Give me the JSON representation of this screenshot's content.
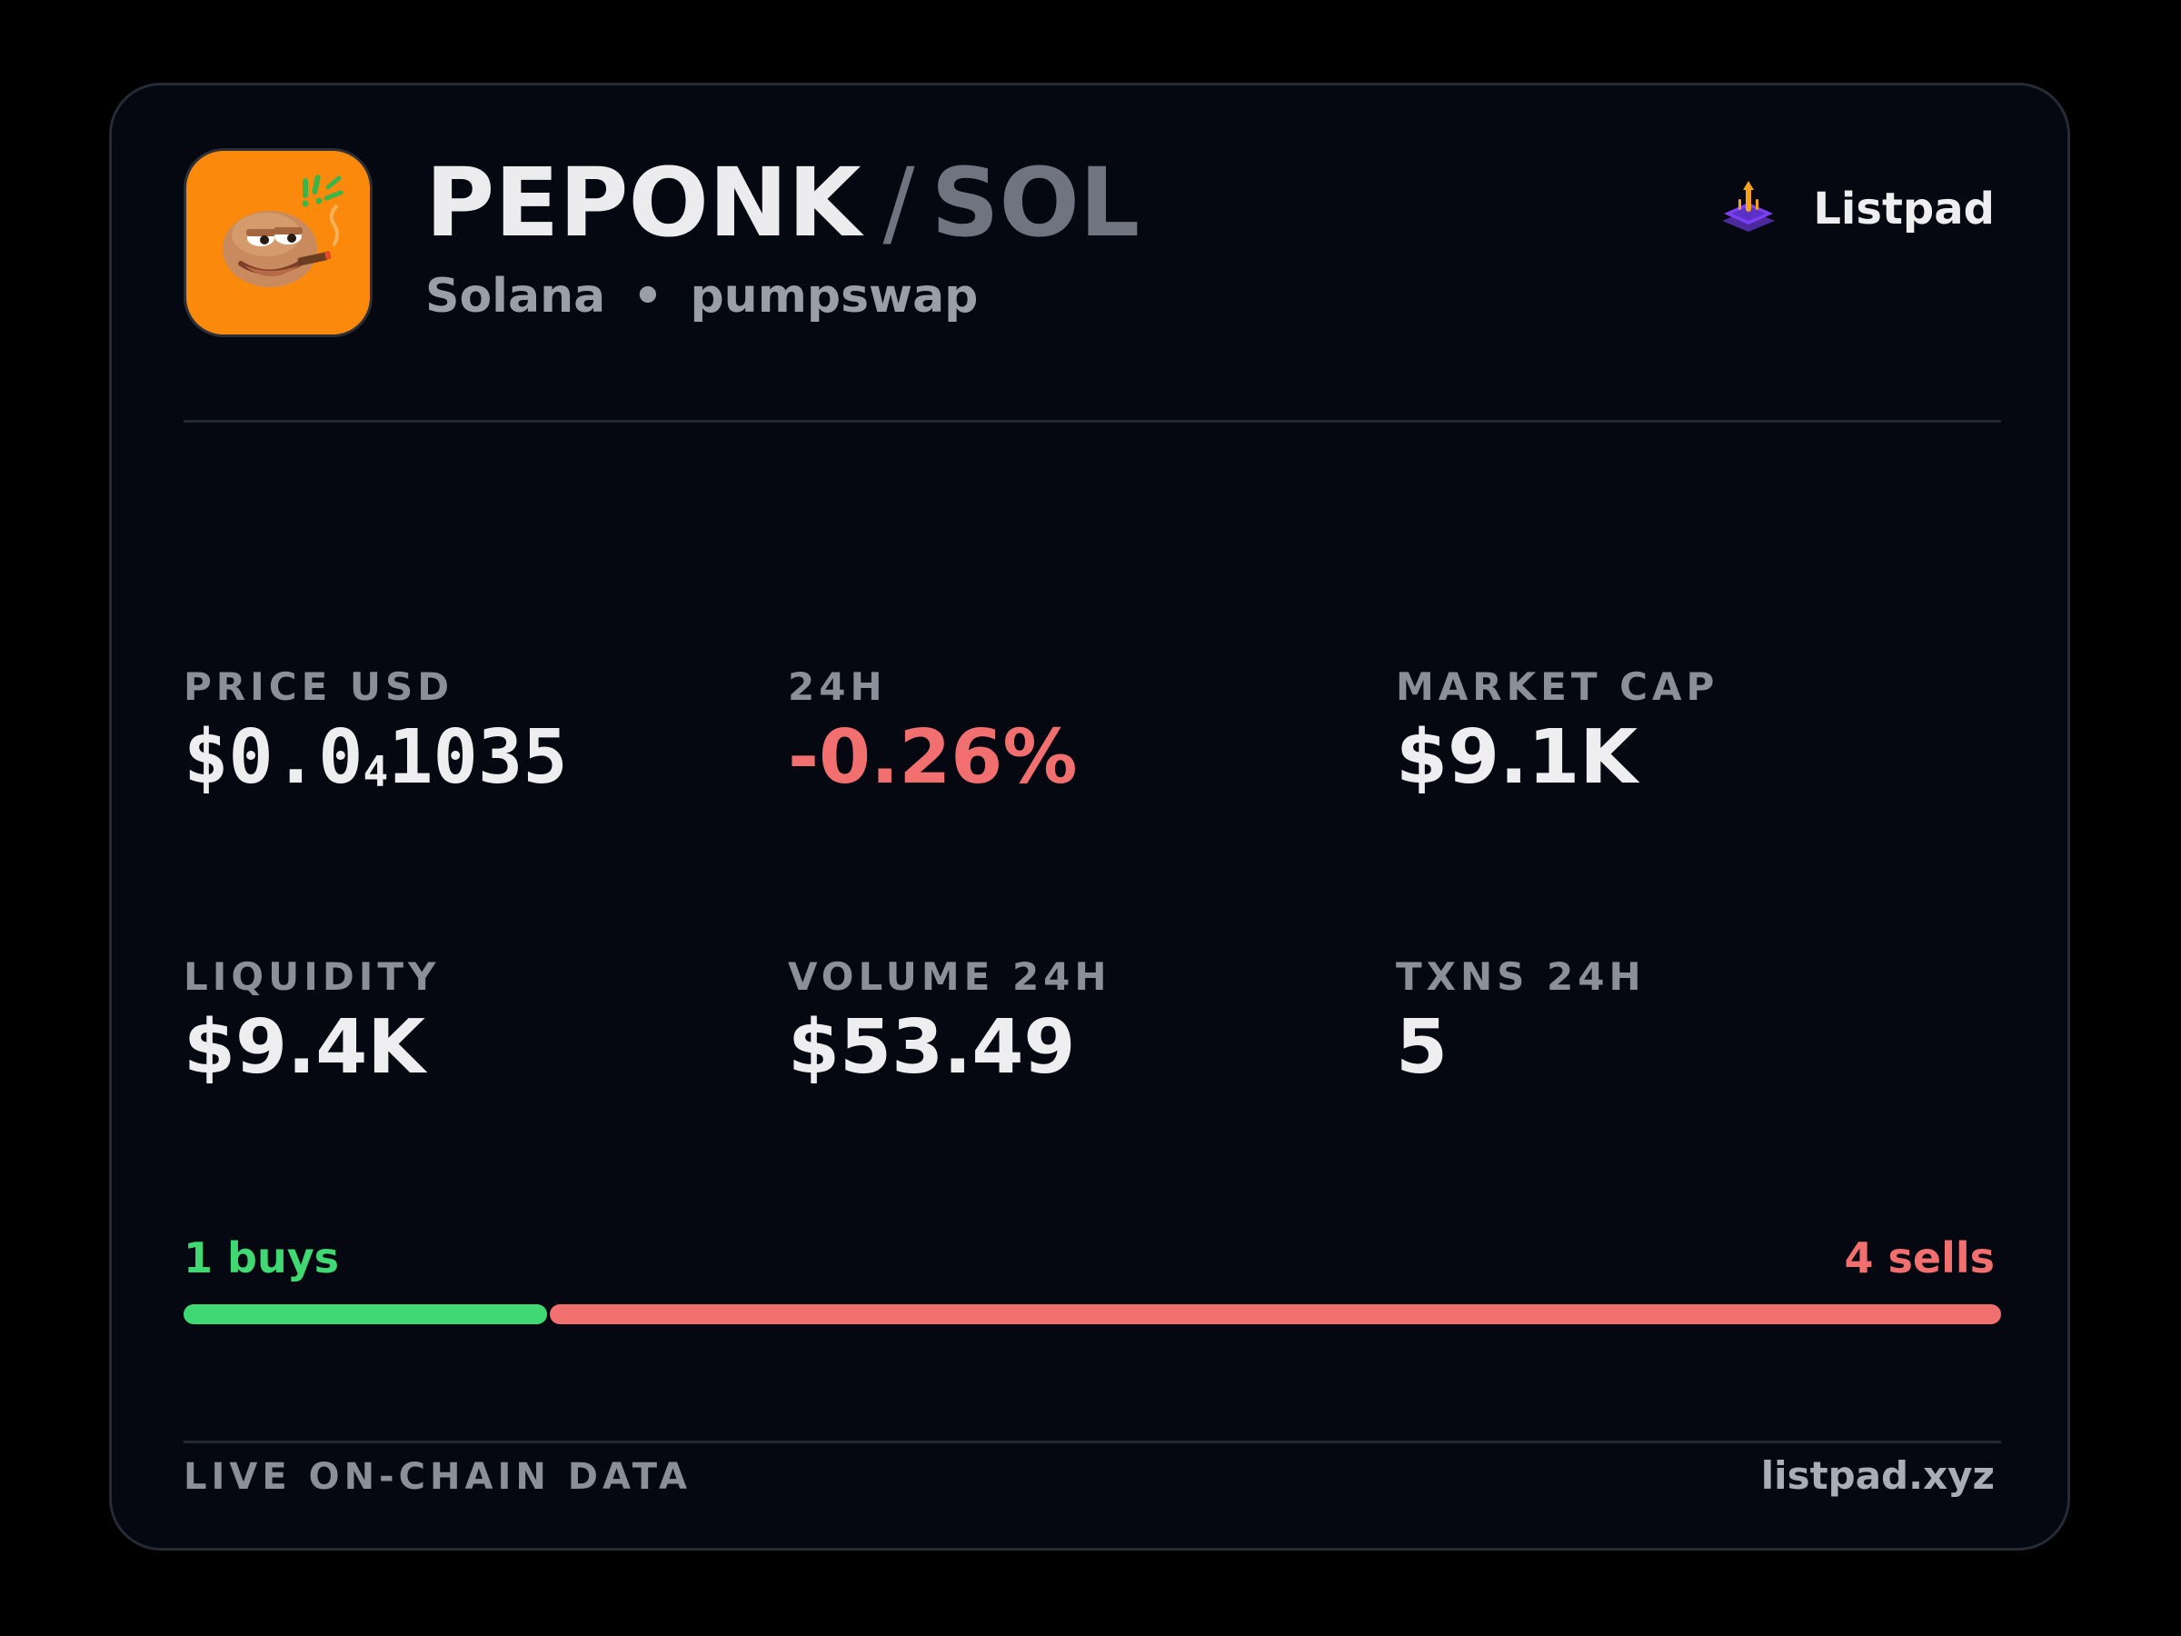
{
  "token": {
    "base_symbol": "PEPONK",
    "separator": "/",
    "quote_symbol": "SOL",
    "chain": "Solana",
    "subline_separator": "•",
    "dex": "pumpswap",
    "avatar_icon": "pepe-frog-smoking-icon",
    "avatar_bg": "#fb8a0c"
  },
  "brand": {
    "name": "Listpad",
    "icon": "listpad-logo-icon"
  },
  "stats": {
    "price": {
      "label": "PRICE USD",
      "prefix": "$0.0",
      "zero_count": "4",
      "digits": "1035"
    },
    "change": {
      "label": "24H",
      "value": "-0.26%"
    },
    "market_cap": {
      "label": "MARKET CAP",
      "value": "$9.1K"
    },
    "liquidity": {
      "label": "LIQUIDITY",
      "value": "$9.4K"
    },
    "volume": {
      "label": "VOLUME 24H",
      "value": "$53.49"
    },
    "txns": {
      "label": "TXNS 24H",
      "value": "5"
    }
  },
  "trades": {
    "buys_label": "1 buys",
    "sells_label": "4 sells",
    "buys_count": 1,
    "sells_count": 4,
    "buys_color": "#3fd872",
    "sells_color": "#f26f6f"
  },
  "footer": {
    "left": "LIVE ON-CHAIN DATA",
    "right": "listpad.xyz"
  }
}
